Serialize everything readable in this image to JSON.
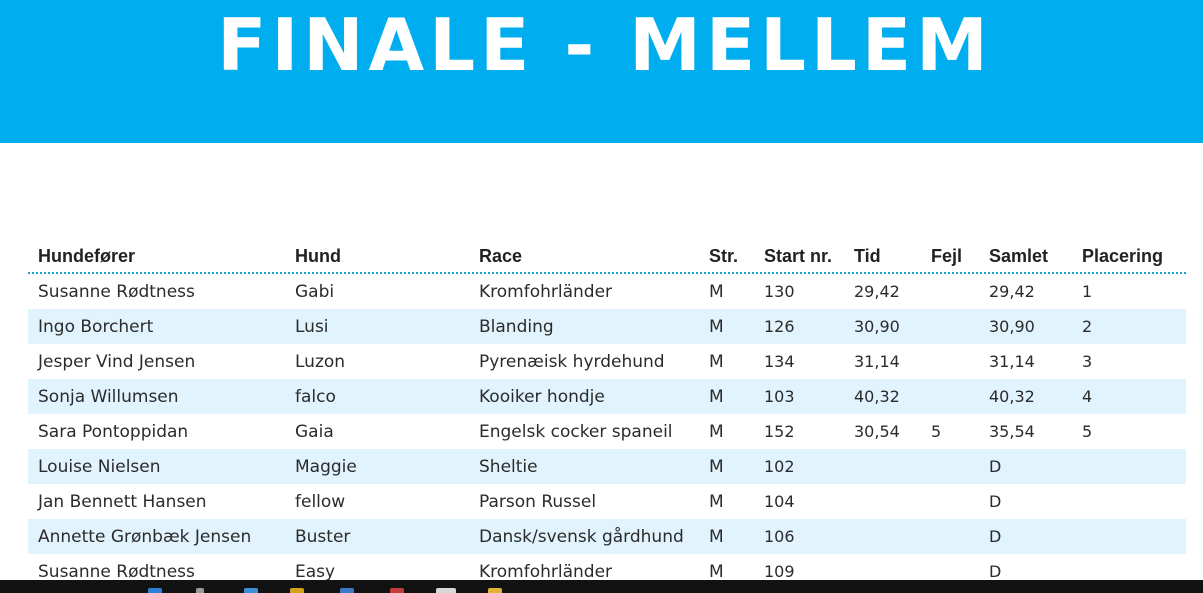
{
  "slide": {
    "title": "FINALE - MELLEM"
  },
  "table": {
    "headers": {
      "handler": "Hundefører",
      "dog": "Hund",
      "breed": "Race",
      "size": "Str.",
      "start_no": "Start nr.",
      "time": "Tid",
      "faults": "Fejl",
      "total": "Samlet",
      "placement": "Placering"
    },
    "rows": [
      {
        "handler": "Susanne Rødtness",
        "dog": "Gabi",
        "breed": "Kromfohrländer",
        "size": "M",
        "start_no": "130",
        "time": "29,42",
        "faults": "",
        "total": "29,42",
        "placement": "1"
      },
      {
        "handler": "Ingo Borchert",
        "dog": "Lusi",
        "breed": "Blanding",
        "size": "M",
        "start_no": "126",
        "time": "30,90",
        "faults": "",
        "total": "30,90",
        "placement": "2"
      },
      {
        "handler": "Jesper Vind Jensen",
        "dog": "Luzon",
        "breed": "Pyrenæisk hyrdehund",
        "size": "M",
        "start_no": "134",
        "time": "31,14",
        "faults": "",
        "total": "31,14",
        "placement": "3"
      },
      {
        "handler": "Sonja Willumsen",
        "dog": "falco",
        "breed": "Kooiker hondje",
        "size": "M",
        "start_no": "103",
        "time": "40,32",
        "faults": "",
        "total": "40,32",
        "placement": "4"
      },
      {
        "handler": "Sara Pontoppidan",
        "dog": "Gaia",
        "breed": "Engelsk cocker spaneil",
        "size": "M",
        "start_no": "152",
        "time": "30,54",
        "faults": "5",
        "total": "35,54",
        "placement": "5"
      },
      {
        "handler": "Louise Nielsen",
        "dog": "Maggie",
        "breed": "Sheltie",
        "size": "M",
        "start_no": "102",
        "time": "",
        "faults": "",
        "total": "D",
        "placement": ""
      },
      {
        "handler": "Jan Bennett Hansen",
        "dog": "fellow",
        "breed": "Parson Russel",
        "size": "M",
        "start_no": "104",
        "time": "",
        "faults": "",
        "total": "D",
        "placement": ""
      },
      {
        "handler": "Annette Grønbæk Jensen",
        "dog": "Buster",
        "breed": "Dansk/svensk gårdhund",
        "size": "M",
        "start_no": "106",
        "time": "",
        "faults": "",
        "total": "D",
        "placement": ""
      },
      {
        "handler": "Susanne Rødtness",
        "dog": "Easy",
        "breed": "Kromfohrländer",
        "size": "M",
        "start_no": "109",
        "time": "",
        "faults": "",
        "total": "D",
        "placement": ""
      }
    ]
  },
  "colors": {
    "banner": "#00aeef",
    "row_alt": "#e1f3fc",
    "divider": "#1aa3c8"
  },
  "taskbar": {
    "icons": [
      "start-icon",
      "browser-icon",
      "search-icon",
      "folder-icon",
      "app-icon",
      "app-icon-2",
      "window-icon",
      "explorer-icon"
    ]
  }
}
